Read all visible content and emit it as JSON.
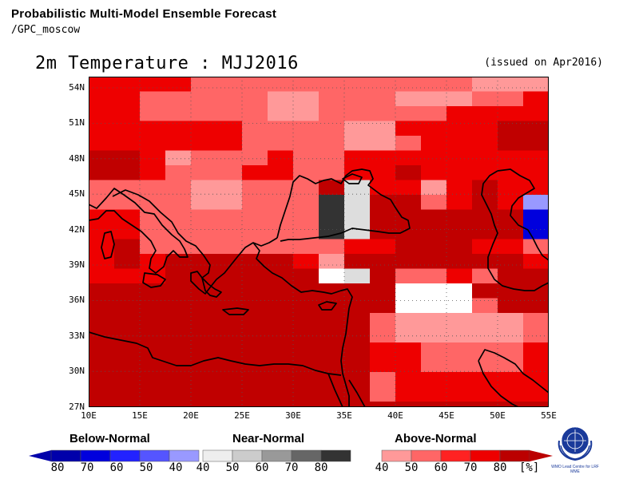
{
  "header": {
    "title": "Probabilistic Multi-Model Ensemble Forecast",
    "source": "/GPC_moscow"
  },
  "map": {
    "title": "2m Temperature : MJJ2016",
    "issued": "(issued on Apr2016)",
    "lat_labels": [
      "54N",
      "51N",
      "48N",
      "45N",
      "42N",
      "39N",
      "36N",
      "33N",
      "30N",
      "27N"
    ],
    "lon_labels": [
      "10E",
      "15E",
      "20E",
      "25E",
      "30E",
      "35E",
      "40E",
      "45E",
      "50E",
      "55E"
    ],
    "grid_lon_range": [
      10,
      55
    ],
    "grid_lat_range": [
      27,
      55
    ],
    "cell_size_deg": 2.5,
    "colors": {
      "A4": "#ff9999",
      "A5": "#ff6666",
      "A6": "#ff2222",
      "A7": "#ee0000",
      "A8": "#c00000",
      "N4": "#dddddd",
      "N8": "#333333",
      "B4": "#9999ff",
      "B8": "#0000dd",
      "W": "#ffffff"
    },
    "cells": [
      "A7 A7 A7 A7 A5 A5 A5 A5 A5 A5 A5 A5 A5 A5 A5 A4 A4 A4",
      "A7 A7 A5 A5 A5 A5 A5 A4 A4 A5 A5 A5 A4 A4 A4 A5 A5 A7",
      "A7 A7 A5 A5 A5 A5 A5 A4 A4 A5 A5 A5 A5 A5 A7 A7 A7 A7",
      "A7 A7 A7 A7 A7 A7 A5 A5 A5 A5 A4 A4 A7 A7 A7 A7 A8 A8",
      "A7 A7 A7 A7 A7 A7 A5 A5 A5 A5 A4 A4 A5 A7 A7 A7 A8 A8",
      "A8 A8 A7 A4 A5 A5 A5 A7 A5 A5 A7 A7 A7 A7 A7 A7 A7 A7",
      "A8 A8 A7 A5 A5 A5 A7 A7 A5 A5 A7 A7 A8 A7 A7 A7 A7 A7",
      "A5 A5 A5 A5 A4 A4 A5 A5 A5 A8 N4 A7 A7 A4 A7 A8 A7 A7",
      "A5 A5 A5 A5 A4 A4 A5 A5 A5 N8 N4 A8 A8 A5 A7 A8 A7 B4",
      "A7 A7 A5 A5 A5 A5 A5 A5 A5 N8 N4 A8 A8 A8 A8 A8 A8 B8",
      "A7 A7 A5 A5 A5 A5 A5 A5 A5 N8 N4 A8 A8 A8 A8 A8 A8 B8",
      "A7 A8 A5 A5 A5 A5 A5 A5 A5 A5 A7 A7 A8 A8 A8 A7 A7 A5",
      "A7 A8 A7 A8 A8 A8 A8 A8 A7 A4 A8 A8 A8 A8 A8 A8 A8 A7",
      "A7 A7 A7 A8 A8 A8 A8 A8 A8 W N4 A8 A5 A5 A7 A5 A8 A8",
      "A8 A8 A8 A8 A8 A8 A8 A8 A8 A8 A8 A8 W W W A8 A8 A8",
      "A8 A8 A8 A8 A8 A8 A8 A8 A8 A8 A8 A8 W W W A5 A8 A8",
      "A8 A8 A8 A8 A8 A8 A8 A8 A8 A8 A8 A5 A4 A4 A4 A4 A4 A5",
      "A8 A8 A8 A8 A8 A8 A8 A8 A8 A8 A8 A5 A4 A4 A4 A4 A4 A5",
      "A8 A8 A8 A8 A8 A8 A8 A8 A8 A8 A8 A7 A7 A5 A5 A5 A5 A7",
      "A8 A8 A8 A8 A8 A8 A8 A8 A8 A8 A8 A7 A7 A5 A5 A5 A5 A7",
      "A8 A8 A8 A8 A8 A8 A8 A8 A8 A8 A8 A5 A7 A7 A7 A7 A7 A7",
      "A8 A8 A8 A8 A8 A8 A8 A8 A8 A8 A8 A5 A7 A7 A7 A7 A7 A7"
    ],
    "white_patches_note_cells": [],
    "coastline_color": "#000000",
    "grid_line_color": "#555555"
  },
  "legend": {
    "below": {
      "title": "Below-Normal",
      "ticks": [
        "80",
        "70",
        "60",
        "50",
        "40"
      ],
      "colors": [
        "#0000aa",
        "#0000dd",
        "#2222ff",
        "#5555ff",
        "#9999ff"
      ]
    },
    "near": {
      "title": "Near-Normal",
      "ticks": [
        "40",
        "50",
        "60",
        "70",
        "80"
      ],
      "colors": [
        "#eeeeee",
        "#cccccc",
        "#999999",
        "#666666",
        "#333333"
      ]
    },
    "above": {
      "title": "Above-Normal",
      "ticks": [
        "40",
        "50",
        "60",
        "70",
        "80"
      ],
      "colors": [
        "#ff9999",
        "#ff6666",
        "#ff2222",
        "#ee0000",
        "#bb0000"
      ],
      "unit": "[%]"
    }
  },
  "logo": {
    "caption": "WMO Lead Centre for LRF MME"
  }
}
